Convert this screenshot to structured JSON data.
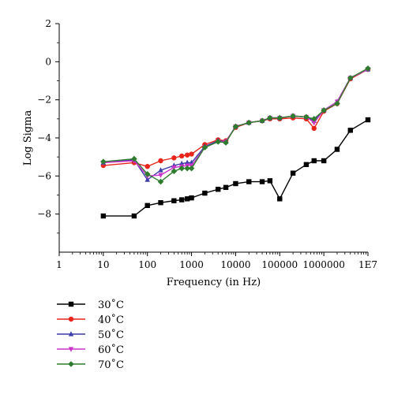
{
  "chart_data": {
    "type": "line",
    "xlabel": "Frequency (in Hz)",
    "ylabel": "Log Sigma",
    "x_scale": "log",
    "xlim": [
      1,
      10000000
    ],
    "ylim": [
      -10,
      2
    ],
    "x_ticks": [
      {
        "value": 1,
        "label": "1"
      },
      {
        "value": 10,
        "label": "10"
      },
      {
        "value": 100,
        "label": "100"
      },
      {
        "value": 1000,
        "label": "1000"
      },
      {
        "value": 10000,
        "label": "10000"
      },
      {
        "value": 100000,
        "label": "100000"
      },
      {
        "value": 1000000,
        "label": "1000000"
      },
      {
        "value": 10000000,
        "label": "1E7"
      }
    ],
    "y_ticks": [
      {
        "value": 2,
        "label": "2"
      },
      {
        "value": 0,
        "label": "0"
      },
      {
        "value": -2,
        "label": "−2"
      },
      {
        "value": -4,
        "label": "−4"
      },
      {
        "value": -6,
        "label": "−6"
      },
      {
        "value": -8,
        "label": "−8"
      }
    ],
    "legend_position": "bottom-left",
    "series": [
      {
        "name": "30˚C",
        "color": "#000000",
        "marker": "square",
        "points": [
          [
            10,
            -8.1
          ],
          [
            50,
            -8.1
          ],
          [
            100,
            -7.55
          ],
          [
            200,
            -7.4
          ],
          [
            400,
            -7.3
          ],
          [
            600,
            -7.25
          ],
          [
            800,
            -7.2
          ],
          [
            1000,
            -7.15
          ],
          [
            2000,
            -6.9
          ],
          [
            4000,
            -6.7
          ],
          [
            6000,
            -6.6
          ],
          [
            10000,
            -6.4
          ],
          [
            20000,
            -6.3
          ],
          [
            40000,
            -6.3
          ],
          [
            60000,
            -6.25
          ],
          [
            100000,
            -7.2
          ],
          [
            200000,
            -5.85
          ],
          [
            400000,
            -5.4
          ],
          [
            600000,
            -5.2
          ],
          [
            1000000,
            -5.2
          ],
          [
            2000000,
            -4.6
          ],
          [
            4000000,
            -3.6
          ],
          [
            10000000,
            -3.05
          ]
        ]
      },
      {
        "name": "40˚C",
        "color": "#e8251b",
        "marker": "circle",
        "points": [
          [
            10,
            -5.45
          ],
          [
            50,
            -5.3
          ],
          [
            100,
            -5.5
          ],
          [
            200,
            -5.2
          ],
          [
            400,
            -5.05
          ],
          [
            600,
            -4.95
          ],
          [
            800,
            -4.9
          ],
          [
            1000,
            -4.85
          ],
          [
            2000,
            -4.35
          ],
          [
            4000,
            -4.1
          ],
          [
            6000,
            -4.15
          ],
          [
            10000,
            -3.45
          ],
          [
            20000,
            -3.2
          ],
          [
            40000,
            -3.1
          ],
          [
            60000,
            -3.0
          ],
          [
            100000,
            -3.0
          ],
          [
            200000,
            -2.95
          ],
          [
            400000,
            -3.0
          ],
          [
            600000,
            -3.5
          ],
          [
            1000000,
            -2.6
          ],
          [
            2000000,
            -2.2
          ],
          [
            4000000,
            -0.9
          ],
          [
            10000000,
            -0.4
          ]
        ]
      },
      {
        "name": "50˚C",
        "color": "#3c3caa",
        "marker": "triangle-up",
        "points": [
          [
            10,
            -5.3
          ],
          [
            50,
            -5.15
          ],
          [
            100,
            -6.2
          ],
          [
            200,
            -5.7
          ],
          [
            400,
            -5.45
          ],
          [
            600,
            -5.35
          ],
          [
            800,
            -5.3
          ],
          [
            1000,
            -5.3
          ],
          [
            2000,
            -4.45
          ],
          [
            4000,
            -4.15
          ],
          [
            6000,
            -4.2
          ],
          [
            10000,
            -3.4
          ],
          [
            20000,
            -3.2
          ],
          [
            40000,
            -3.1
          ],
          [
            60000,
            -2.95
          ],
          [
            100000,
            -2.95
          ],
          [
            200000,
            -2.85
          ],
          [
            400000,
            -2.9
          ],
          [
            600000,
            -3.1
          ],
          [
            1000000,
            -2.55
          ],
          [
            2000000,
            -2.1
          ],
          [
            4000000,
            -0.85
          ],
          [
            10000000,
            -0.4
          ]
        ]
      },
      {
        "name": "60˚C",
        "color": "#cc33cc",
        "marker": "triangle-down",
        "points": [
          [
            10,
            -5.3
          ],
          [
            50,
            -5.2
          ],
          [
            100,
            -6.0
          ],
          [
            200,
            -5.95
          ],
          [
            400,
            -5.55
          ],
          [
            600,
            -5.5
          ],
          [
            800,
            -5.45
          ],
          [
            1000,
            -5.45
          ],
          [
            2000,
            -4.5
          ],
          [
            4000,
            -4.2
          ],
          [
            6000,
            -4.2
          ],
          [
            10000,
            -3.4
          ],
          [
            20000,
            -3.2
          ],
          [
            40000,
            -3.1
          ],
          [
            60000,
            -2.95
          ],
          [
            100000,
            -2.95
          ],
          [
            200000,
            -2.85
          ],
          [
            400000,
            -2.9
          ],
          [
            600000,
            -3.2
          ],
          [
            1000000,
            -2.55
          ],
          [
            2000000,
            -2.1
          ],
          [
            4000000,
            -0.85
          ],
          [
            10000000,
            -0.4
          ]
        ]
      },
      {
        "name": "70˚C",
        "color": "#2e7d2e",
        "marker": "diamond",
        "points": [
          [
            10,
            -5.25
          ],
          [
            50,
            -5.1
          ],
          [
            100,
            -5.9
          ],
          [
            200,
            -6.3
          ],
          [
            400,
            -5.75
          ],
          [
            600,
            -5.6
          ],
          [
            800,
            -5.6
          ],
          [
            1000,
            -5.6
          ],
          [
            2000,
            -4.5
          ],
          [
            4000,
            -4.2
          ],
          [
            6000,
            -4.25
          ],
          [
            10000,
            -3.4
          ],
          [
            20000,
            -3.2
          ],
          [
            40000,
            -3.1
          ],
          [
            60000,
            -2.95
          ],
          [
            100000,
            -2.95
          ],
          [
            200000,
            -2.85
          ],
          [
            400000,
            -2.9
          ],
          [
            600000,
            -3.0
          ],
          [
            1000000,
            -2.55
          ],
          [
            2000000,
            -2.2
          ],
          [
            4000000,
            -0.85
          ],
          [
            10000000,
            -0.35
          ]
        ]
      }
    ]
  }
}
